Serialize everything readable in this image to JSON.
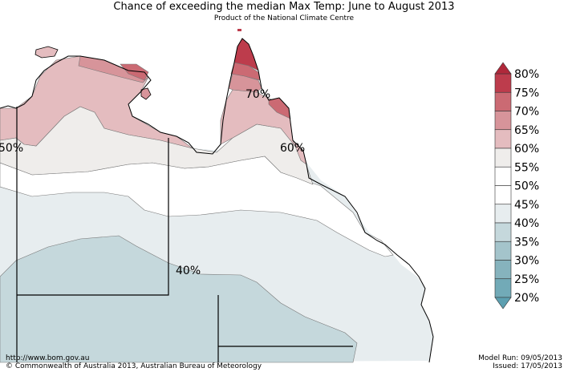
{
  "header": {
    "title": "Chance of exceeding the median Max Temp: June to August 2013",
    "subtitle": "Product of the National Climate Centre"
  },
  "map": {
    "contour_labels": [
      "50%",
      "70%",
      "60%",
      "40%"
    ]
  },
  "legend": {
    "labels": [
      "80%",
      "75%",
      "70%",
      "65%",
      "60%",
      "55%",
      "50%",
      "45%",
      "40%",
      "35%",
      "30%",
      "25%",
      "20%"
    ],
    "colors": [
      "#bd3c4c",
      "#cb6a73",
      "#d7949a",
      "#e4bcbf",
      "#efedeb",
      "#ffffff",
      "#ffffff",
      "#e7edef",
      "#c5d8dc",
      "#a4c4cb",
      "#86b3bd",
      "#72aab7",
      "#65a3b3"
    ],
    "top_arrow_color": "#b0283a",
    "bottom_arrow_color": "#5d9fb0"
  },
  "footer": {
    "url": "http://www.bom.gov.au",
    "copyright": "©  Commonwealth of Australia 2013, Australian Bureau of Meteorology",
    "model_run": "Model Run: 09/05/2013",
    "issued": "Issued: 17/05/2013"
  }
}
